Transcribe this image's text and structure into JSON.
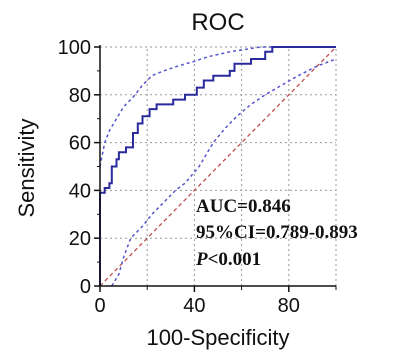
{
  "chart_data": {
    "type": "line",
    "title": "ROC",
    "xlabel": "100-Specificity",
    "ylabel": "Sensitivity",
    "xlim": [
      0,
      100
    ],
    "ylim": [
      0,
      100
    ],
    "xticks": [
      0,
      40,
      80
    ],
    "yticks": [
      0,
      20,
      40,
      60,
      80,
      100
    ],
    "grid": true,
    "colors": {
      "roc": "#2a2a9c",
      "ci": "#5555cc",
      "reference": "#c0504d",
      "grid": "#9a9a9a"
    },
    "series": [
      {
        "role": "roc-curve",
        "points": [
          [
            0,
            0
          ],
          [
            0,
            39
          ],
          [
            2,
            39
          ],
          [
            2,
            41
          ],
          [
            4,
            41
          ],
          [
            4,
            43
          ],
          [
            5,
            43
          ],
          [
            5,
            50
          ],
          [
            7,
            50
          ],
          [
            7,
            53
          ],
          [
            8,
            53
          ],
          [
            8,
            56
          ],
          [
            11,
            56
          ],
          [
            11,
            58
          ],
          [
            14,
            58
          ],
          [
            14,
            64
          ],
          [
            16,
            64
          ],
          [
            16,
            68
          ],
          [
            18,
            68
          ],
          [
            18,
            71
          ],
          [
            21,
            71
          ],
          [
            21,
            74
          ],
          [
            24,
            74
          ],
          [
            24,
            76
          ],
          [
            31,
            76
          ],
          [
            31,
            78
          ],
          [
            36,
            78
          ],
          [
            36,
            80
          ],
          [
            41,
            80
          ],
          [
            41,
            83
          ],
          [
            44,
            83
          ],
          [
            44,
            86
          ],
          [
            48,
            86
          ],
          [
            48,
            88
          ],
          [
            55,
            88
          ],
          [
            55,
            90
          ],
          [
            57,
            90
          ],
          [
            57,
            93
          ],
          [
            64,
            93
          ],
          [
            64,
            95
          ],
          [
            70,
            95
          ],
          [
            70,
            98
          ],
          [
            73,
            98
          ],
          [
            73,
            100
          ],
          [
            100,
            100
          ]
        ]
      },
      {
        "role": "ci-upper",
        "points": [
          [
            0,
            50
          ],
          [
            2,
            60
          ],
          [
            4,
            65
          ],
          [
            7,
            70
          ],
          [
            10,
            75
          ],
          [
            14,
            79
          ],
          [
            18,
            84
          ],
          [
            22,
            88
          ],
          [
            27,
            90
          ],
          [
            33,
            92
          ],
          [
            40,
            94
          ],
          [
            46,
            96
          ],
          [
            55,
            98
          ],
          [
            68,
            100
          ],
          [
            100,
            100
          ]
        ]
      },
      {
        "role": "ci-lower",
        "points": [
          [
            5,
            0
          ],
          [
            8,
            5
          ],
          [
            10,
            12
          ],
          [
            13,
            20
          ],
          [
            18,
            25
          ],
          [
            22,
            30
          ],
          [
            27,
            35
          ],
          [
            32,
            40
          ],
          [
            36,
            43
          ],
          [
            42,
            50
          ],
          [
            48,
            60
          ],
          [
            53,
            66
          ],
          [
            58,
            71
          ],
          [
            64,
            76
          ],
          [
            70,
            80
          ],
          [
            77,
            84
          ],
          [
            84,
            88
          ],
          [
            92,
            92
          ],
          [
            100,
            95
          ]
        ]
      },
      {
        "role": "reference",
        "points": [
          [
            0,
            0
          ],
          [
            100,
            100
          ]
        ]
      }
    ],
    "annotations": {
      "auc": "AUC=0.846",
      "ci": "95%CI=0.789-0.893",
      "p_italic": "P",
      "p_rest": "<0.001"
    }
  }
}
